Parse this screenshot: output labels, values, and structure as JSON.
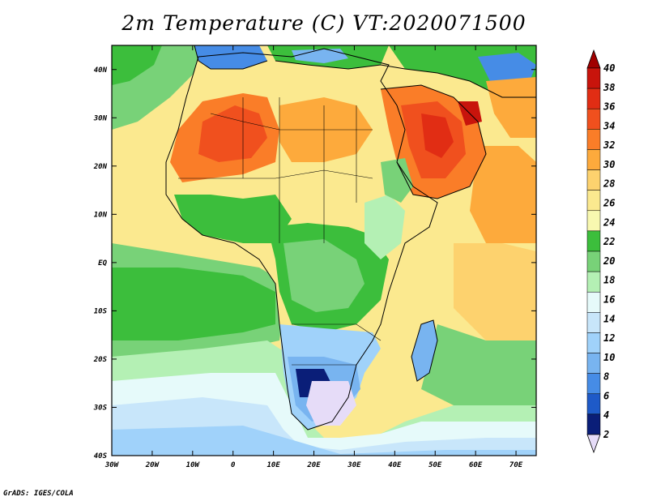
{
  "title": "2m Temperature (C) VT:2020071500",
  "credit": "GrADS: IGES/COLA",
  "map": {
    "lon_labels": [
      "30W",
      "20W",
      "10W",
      "0",
      "10E",
      "20E",
      "30E",
      "40E",
      "50E",
      "60E",
      "70E"
    ],
    "lat_labels": [
      "40N",
      "30N",
      "20N",
      "10N",
      "EQ",
      "10S",
      "20S",
      "30S",
      "40S"
    ],
    "lon_range": [
      -30,
      75
    ],
    "lat_range": [
      -40,
      45
    ]
  },
  "colorbar": {
    "labels": [
      "40",
      "38",
      "36",
      "34",
      "32",
      "30",
      "28",
      "26",
      "24",
      "22",
      "20",
      "18",
      "16",
      "14",
      "12",
      "10",
      "8",
      "6",
      "4",
      "2"
    ],
    "colors": [
      "#a00000",
      "#c8140c",
      "#e12d14",
      "#f0501e",
      "#fa7d28",
      "#fdaa3c",
      "#fdd26e",
      "#fbe98f",
      "#f8f8b0",
      "#3cbe3c",
      "#78d278",
      "#b4f0b4",
      "#e6fafa",
      "#c8e6fa",
      "#a0d2fa",
      "#78b4f0",
      "#468ce6",
      "#1e5ac8",
      "#0a1e78",
      "#e6dcf8"
    ]
  },
  "chart_data": {
    "type": "heatmap",
    "title": "2m Temperature (C) VT:2020071500",
    "x_ticks": [
      "30W",
      "20W",
      "10W",
      "0",
      "10E",
      "20E",
      "30E",
      "40E",
      "50E",
      "60E",
      "70E"
    ],
    "y_ticks": [
      "40N",
      "30N",
      "20N",
      "10N",
      "EQ",
      "10S",
      "20S",
      "30S",
      "40S"
    ],
    "xlim": [
      -30,
      75
    ],
    "ylim": [
      -40,
      45
    ],
    "color_levels": [
      2,
      4,
      6,
      8,
      10,
      12,
      14,
      16,
      18,
      20,
      22,
      24,
      26,
      28,
      30,
      32,
      34,
      36,
      38,
      40
    ]
  }
}
